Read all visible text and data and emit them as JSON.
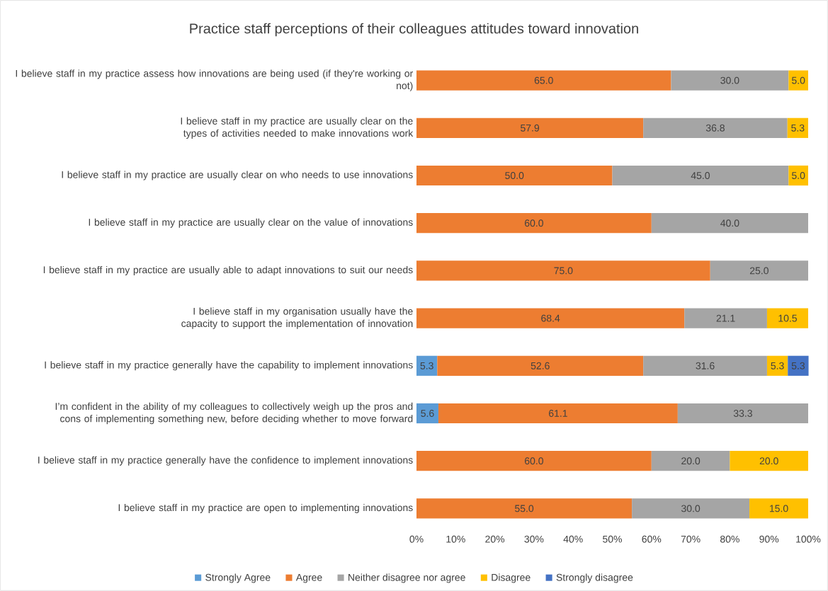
{
  "chart_data": {
    "type": "bar",
    "orientation": "horizontal",
    "stacked": true,
    "title": "Practice staff perceptions of their colleagues attitudes toward innovation",
    "categories": [
      "I believe staff in my practice assess how innovations are being used (if they're working or not)",
      "I believe staff in my practice are usually clear on the types of activities needed to make innovations work",
      "I believe staff in my practice are usually clear on who needs to use innovations",
      "I believe staff in my practice are usually clear on the value of innovations",
      "I believe staff in my practice are usually able to adapt innovations to suit our needs",
      "I believe staff in my organisation usually have the capacity to support the implementation of innovation",
      "I believe staff in my practice generally have the capability to implement innovations",
      "I’m confident in the ability of my colleagues to collectively weigh up the pros and cons of implementing something new, before deciding whether to move forward",
      "I believe staff in my practice generally have the confidence to implement innovations",
      "I believe staff in my practice are open to implementing innovations"
    ],
    "series": [
      {
        "name": "Strongly Agree",
        "color": "#5b9bd5",
        "values": [
          null,
          null,
          null,
          null,
          null,
          null,
          5.3,
          5.6,
          null,
          null
        ],
        "value_labels": [
          null,
          null,
          null,
          null,
          null,
          null,
          "5.3",
          "5.6",
          null,
          null
        ]
      },
      {
        "name": "Agree",
        "color": "#ed7d31",
        "values": [
          65.0,
          57.9,
          50.0,
          60.0,
          75.0,
          68.4,
          52.6,
          61.1,
          60.0,
          55.0
        ],
        "value_labels": [
          "65.0",
          "57.9",
          "50.0",
          "60.0",
          "75.0",
          "68.4",
          "52.6",
          "61.1",
          "60.0",
          "55.0"
        ]
      },
      {
        "name": "Neither disagree nor agree",
        "color": "#a5a5a5",
        "values": [
          30.0,
          36.8,
          45.0,
          40.0,
          25.0,
          21.1,
          31.6,
          33.3,
          20.0,
          30.0
        ],
        "value_labels": [
          "30.0",
          "36.8",
          "45.0",
          "40.0",
          "25.0",
          "21.1",
          "31.6",
          "33.3",
          "20.0",
          "30.0"
        ]
      },
      {
        "name": "Disagree",
        "color": "#ffc000",
        "values": [
          5.0,
          5.3,
          5.0,
          null,
          null,
          10.5,
          5.3,
          null,
          20.0,
          15.0
        ],
        "value_labels": [
          "5.0",
          "5.3",
          "5.0",
          null,
          null,
          "10.5",
          "5.3",
          null,
          "20.0",
          "15.0"
        ]
      },
      {
        "name": "Strongly disagree",
        "color": "#4472c4",
        "values": [
          null,
          null,
          null,
          null,
          null,
          null,
          5.3,
          null,
          null,
          null
        ],
        "value_labels": [
          null,
          null,
          null,
          null,
          null,
          null,
          "5.3",
          null,
          null,
          null
        ]
      }
    ],
    "xlim": [
      0,
      100
    ],
    "xticks": [
      {
        "value": 0,
        "label": "0%"
      },
      {
        "value": 10,
        "label": "10%"
      },
      {
        "value": 20,
        "label": "20%"
      },
      {
        "value": 30,
        "label": "30%"
      },
      {
        "value": 40,
        "label": "40%"
      },
      {
        "value": 50,
        "label": "50%"
      },
      {
        "value": 60,
        "label": "60%"
      },
      {
        "value": 70,
        "label": "70%"
      },
      {
        "value": 80,
        "label": "80%"
      },
      {
        "value": 90,
        "label": "90%"
      },
      {
        "value": 100,
        "label": "100%"
      }
    ],
    "legend": "bottom"
  }
}
